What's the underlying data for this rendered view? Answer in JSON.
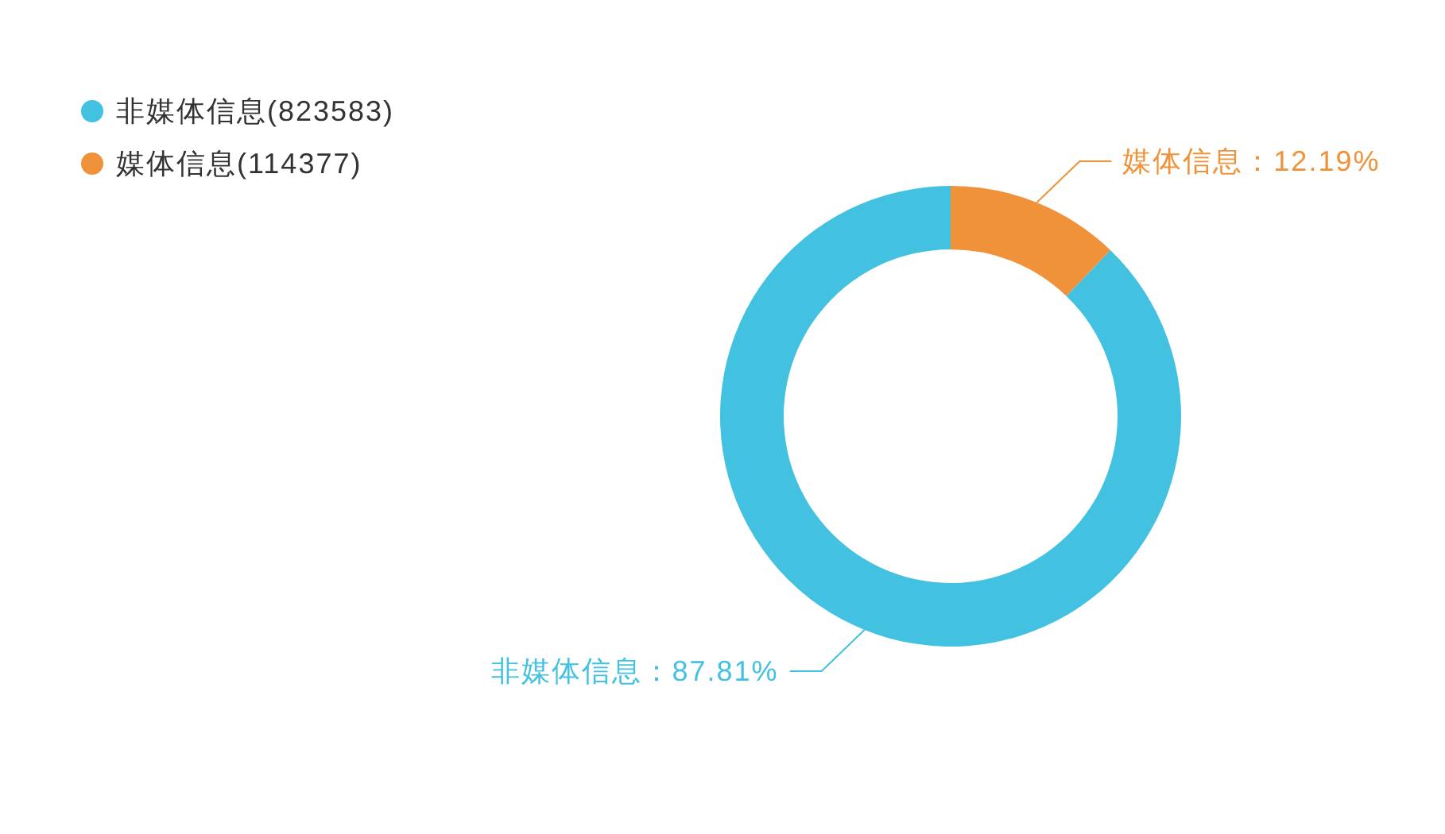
{
  "chart_data": {
    "type": "donut",
    "categories": [
      "非媒体信息(823583)",
      "媒体信息(114377)"
    ],
    "values": [
      87.81,
      12.19
    ],
    "colors": [
      "#43c1e1",
      "#f0923a"
    ],
    "value_labels": [
      "非媒体信息：87.81%",
      "媒体信息：12.19%"
    ],
    "legend": "top left"
  }
}
